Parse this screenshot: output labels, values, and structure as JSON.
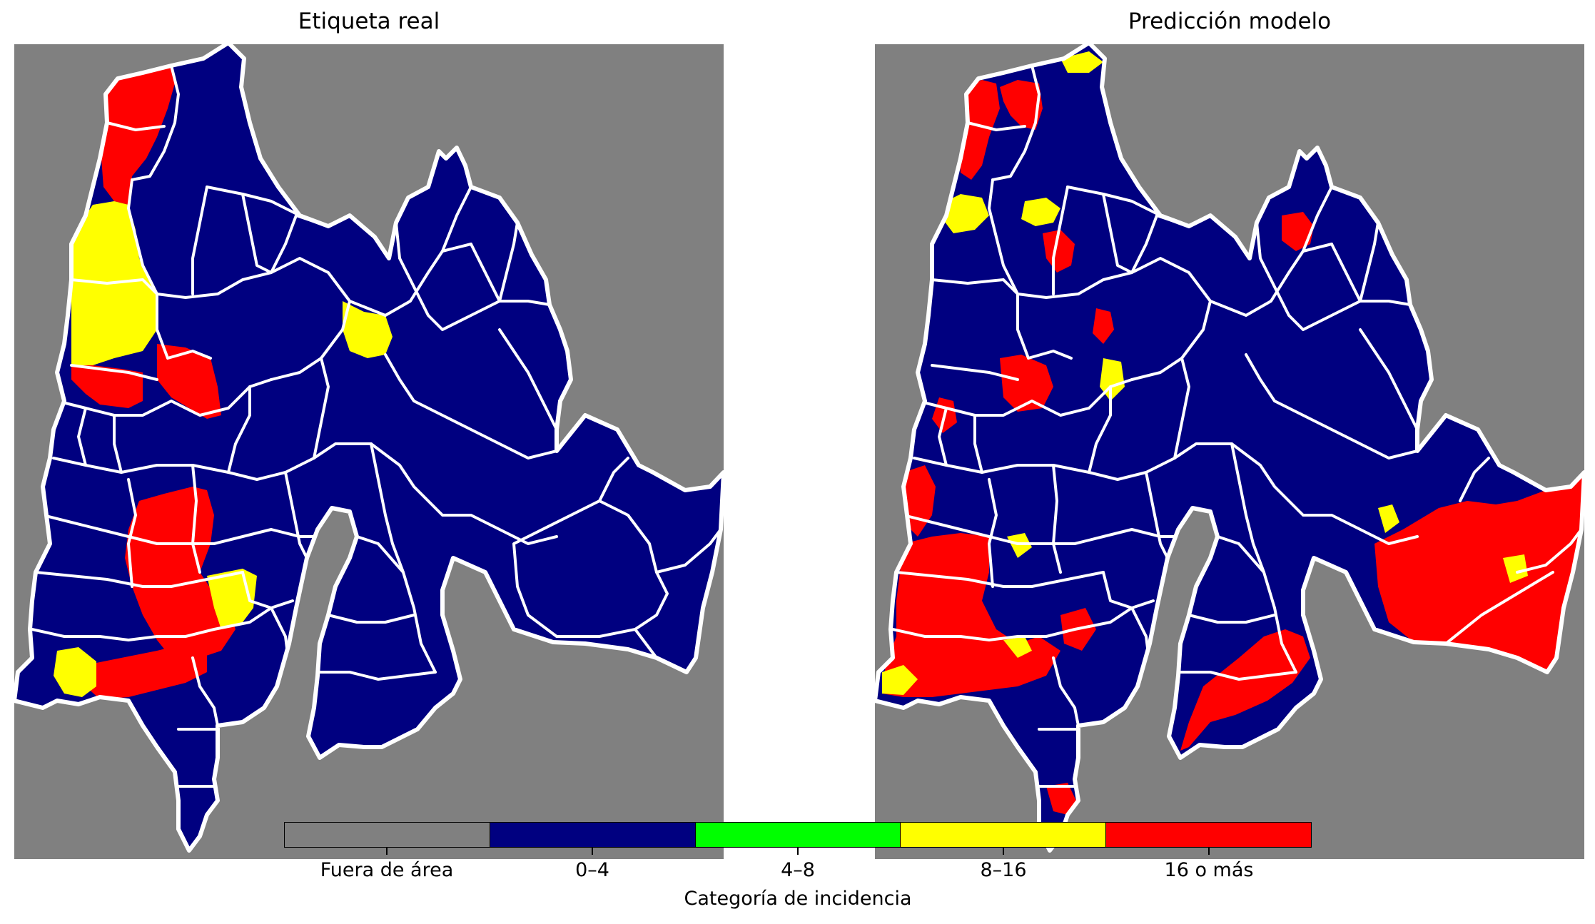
{
  "panels": {
    "left_title": "Etiqueta real",
    "right_title": "Predicción modelo"
  },
  "colorbar": {
    "title": "Categoría de incidencia",
    "categories": [
      {
        "label": "Fuera de área",
        "color": "#808080"
      },
      {
        "label": "0–4",
        "color": "#000080"
      },
      {
        "label": "4–8",
        "color": "#00ff00"
      },
      {
        "label": "8–16",
        "color": "#ffff00"
      },
      {
        "label": "16 o más",
        "color": "#ff0000"
      }
    ]
  },
  "colors": {
    "outside": "#808080",
    "boundary": "#ffffff",
    "low": "#000080",
    "mid_high": "#ffff00",
    "high": "#ff0000"
  }
}
